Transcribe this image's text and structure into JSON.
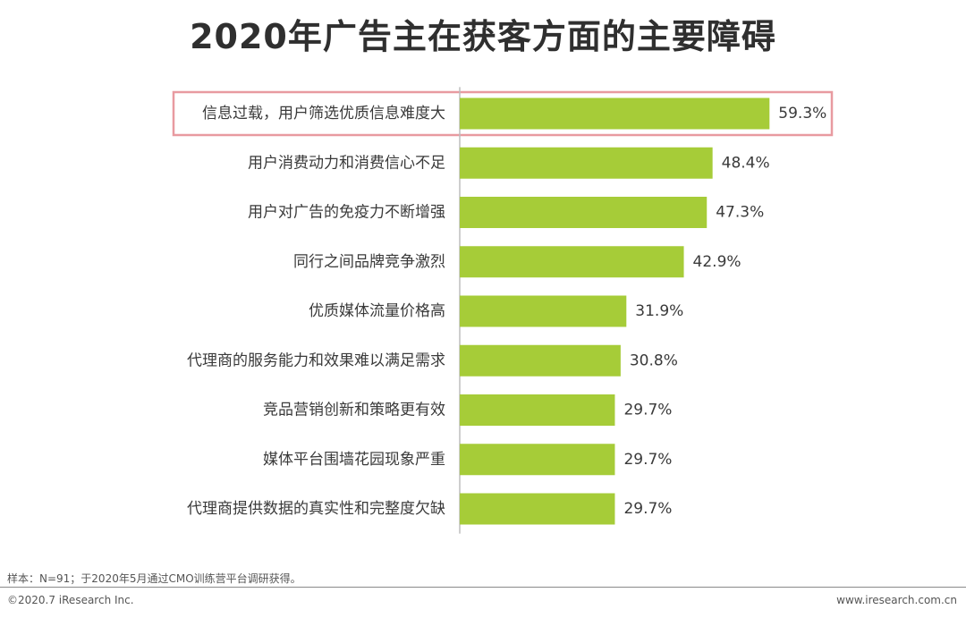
{
  "chart_data": {
    "type": "bar",
    "orientation": "horizontal",
    "title": "2020年广告主在获客方面的主要障碍",
    "categories": [
      "信息过载，用户筛选优质信息难度大",
      "用户消费动力和消费信心不足",
      "用户对广告的免疫力不断增强",
      "同行之间品牌竞争激烈",
      "优质媒体流量价格高",
      "代理商的服务能力和效果难以满足需求",
      "竞品营销创新和策略更有效",
      "媒体平台围墙花园现象严重",
      "代理商提供数据的真实性和完整度欠缺"
    ],
    "values": [
      59.3,
      48.4,
      47.3,
      42.9,
      31.9,
      30.8,
      29.7,
      29.7,
      29.7
    ],
    "value_labels": [
      "59.3%",
      "48.4%",
      "47.3%",
      "42.9%",
      "31.9%",
      "30.8%",
      "29.7%",
      "29.7%",
      "29.7%"
    ],
    "unit": "%",
    "xlim": [
      0,
      100
    ],
    "grid": false,
    "highlighted_category_index": 0
  },
  "colors": {
    "bar": "#a6cc38",
    "highlight_border": "#e89aa0",
    "axis": "#bdbdbd",
    "title": "#2f2f2f",
    "text": "#3a3a3a"
  },
  "footer": {
    "source": "样本：N=91；于2020年5月通过CMO训练营平台调研获得。",
    "copyright": "©2020.7 iResearch Inc.",
    "website": "www.iresearch.com.cn"
  }
}
